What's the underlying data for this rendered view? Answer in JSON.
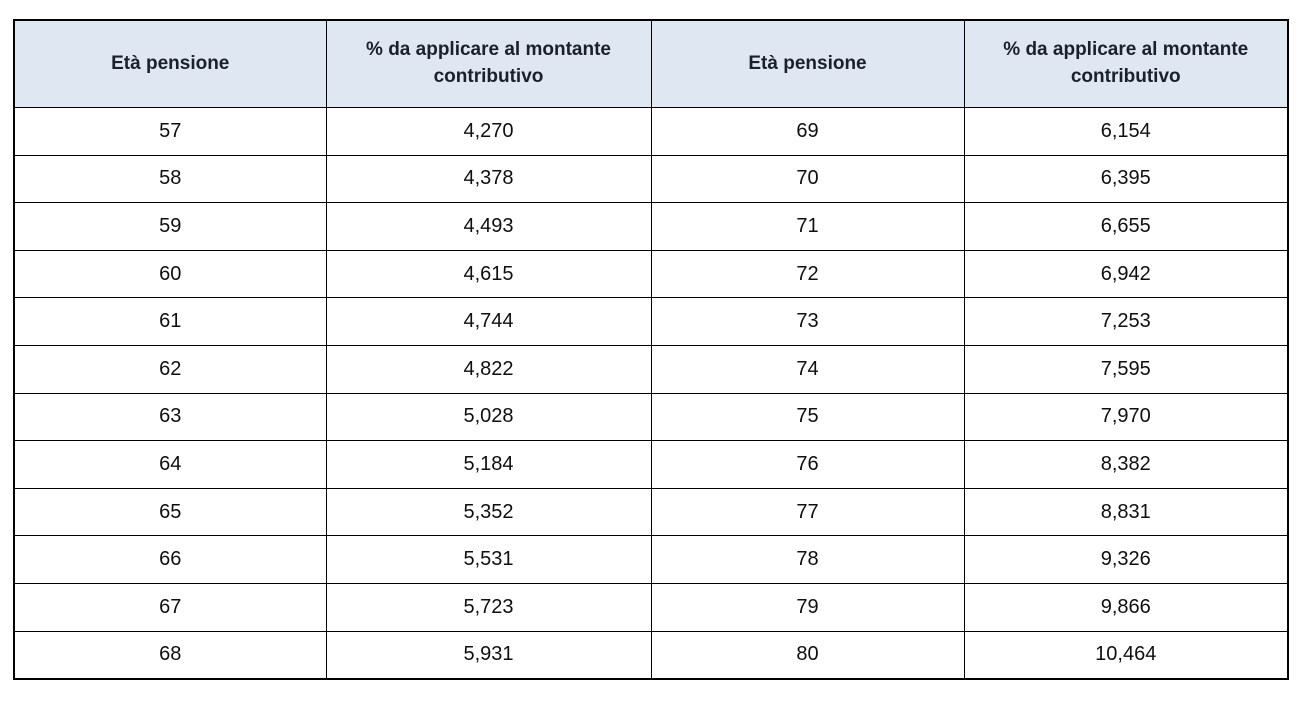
{
  "table": {
    "headers": [
      "Età pensione",
      "% da applicare al montante contributivo",
      "Età pensione",
      "% da applicare al montante contributivo"
    ],
    "rows": [
      [
        "57",
        "4,270",
        "69",
        "6,154"
      ],
      [
        "58",
        "4,378",
        "70",
        "6,395"
      ],
      [
        "59",
        "4,493",
        "71",
        "6,655"
      ],
      [
        "60",
        "4,615",
        "72",
        "6,942"
      ],
      [
        "61",
        "4,744",
        "73",
        "7,253"
      ],
      [
        "62",
        "4,822",
        "74",
        "7,595"
      ],
      [
        "63",
        "5,028",
        "75",
        "7,970"
      ],
      [
        "64",
        "5,184",
        "76",
        "8,382"
      ],
      [
        "65",
        "5,352",
        "77",
        "8,831"
      ],
      [
        "66",
        "5,531",
        "78",
        "9,326"
      ],
      [
        "67",
        "5,723",
        "79",
        "9,866"
      ],
      [
        "68",
        "5,931",
        "80",
        "10,464"
      ]
    ]
  },
  "colors": {
    "header_bg": "#dee7f2",
    "border": "#000000",
    "header_text": "#1a202c",
    "cell_text": "#0f0f0f",
    "page_bg": "#ffffff"
  }
}
